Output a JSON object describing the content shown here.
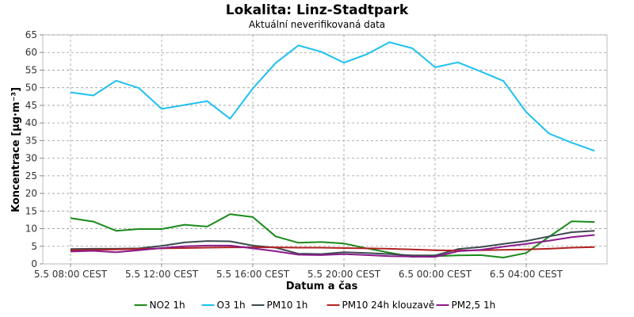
{
  "chart_data": {
    "type": "line",
    "title": "Lokalita: Linz-Stadtpark",
    "subtitle": "Aktuální neverifikovaná data",
    "xlabel": "Datum a čas",
    "ylabel": "Koncentrace [µg·m⁻³]",
    "ylim": [
      0,
      65
    ],
    "y_ticks": [
      0,
      5,
      10,
      15,
      20,
      25,
      30,
      35,
      40,
      45,
      50,
      55,
      60,
      65
    ],
    "x": [
      "5.5 08:00",
      "5.5 09:00",
      "5.5 10:00",
      "5.5 11:00",
      "5.5 12:00",
      "5.5 13:00",
      "5.5 14:00",
      "5.5 15:00",
      "5.5 16:00",
      "5.5 17:00",
      "5.5 18:00",
      "5.5 19:00",
      "5.5 20:00",
      "5.5 21:00",
      "5.5 22:00",
      "5.5 23:00",
      "6.5 00:00",
      "6.5 01:00",
      "6.5 02:00",
      "6.5 03:00",
      "6.5 04:00",
      "6.5 05:00",
      "6.5 06:00",
      "6.5 07:00"
    ],
    "x_ticks": [
      {
        "index": 0,
        "label": "5.5 08:00 CEST"
      },
      {
        "index": 4,
        "label": "5.5 12:00 CEST"
      },
      {
        "index": 8,
        "label": "5.5 16:00 CEST"
      },
      {
        "index": 12,
        "label": "5.5 20:00 CEST"
      },
      {
        "index": 16,
        "label": "6.5 00:00 CEST"
      },
      {
        "index": 20,
        "label": "6.5 04:00 CEST"
      }
    ],
    "grid": true,
    "legend_position": "bottom",
    "series": [
      {
        "name": "NO2 1h",
        "color": "#1a8a1a",
        "values": [
          13.0,
          12.0,
          9.4,
          9.9,
          9.9,
          11.1,
          10.6,
          14.1,
          13.3,
          7.8,
          6.0,
          6.2,
          5.8,
          4.4,
          3.2,
          2.0,
          2.2,
          2.4,
          2.5,
          1.8,
          3.1,
          7.7,
          12.1,
          11.9
        ]
      },
      {
        "name": "O3 1h",
        "color": "#1ec0f0",
        "values": [
          48.7,
          47.8,
          52.0,
          49.9,
          44.0,
          45.1,
          46.2,
          41.2,
          49.8,
          57.0,
          62.0,
          60.2,
          57.1,
          59.5,
          62.9,
          61.2,
          55.8,
          57.2,
          54.6,
          51.9,
          43.1,
          37.0,
          34.4,
          32.1
        ]
      },
      {
        "name": "PM10 1h",
        "color": "#3c4a50",
        "values": [
          4.2,
          4.3,
          4.3,
          4.4,
          5.1,
          6.1,
          6.5,
          6.4,
          5.2,
          4.6,
          2.9,
          2.8,
          3.3,
          3.1,
          2.8,
          2.4,
          2.4,
          4.2,
          4.8,
          5.7,
          6.5,
          7.8,
          9.0,
          9.4
        ]
      },
      {
        "name": "PM10 24h klouzavě",
        "color": "#b22222",
        "values": [
          3.9,
          4.0,
          4.1,
          4.2,
          4.4,
          4.5,
          4.6,
          4.7,
          4.7,
          4.7,
          4.6,
          4.6,
          4.5,
          4.4,
          4.3,
          4.1,
          3.9,
          3.8,
          3.9,
          4.0,
          4.1,
          4.3,
          4.6,
          4.8
        ]
      },
      {
        "name": "PM2,5 1h",
        "color": "#8b1a8b",
        "values": [
          3.5,
          3.7,
          3.3,
          3.9,
          4.5,
          5.0,
          5.2,
          5.2,
          4.4,
          3.6,
          2.6,
          2.5,
          2.8,
          2.5,
          2.2,
          2.1,
          2.0,
          3.6,
          4.0,
          4.9,
          5.7,
          6.6,
          7.6,
          8.2
        ]
      }
    ]
  }
}
